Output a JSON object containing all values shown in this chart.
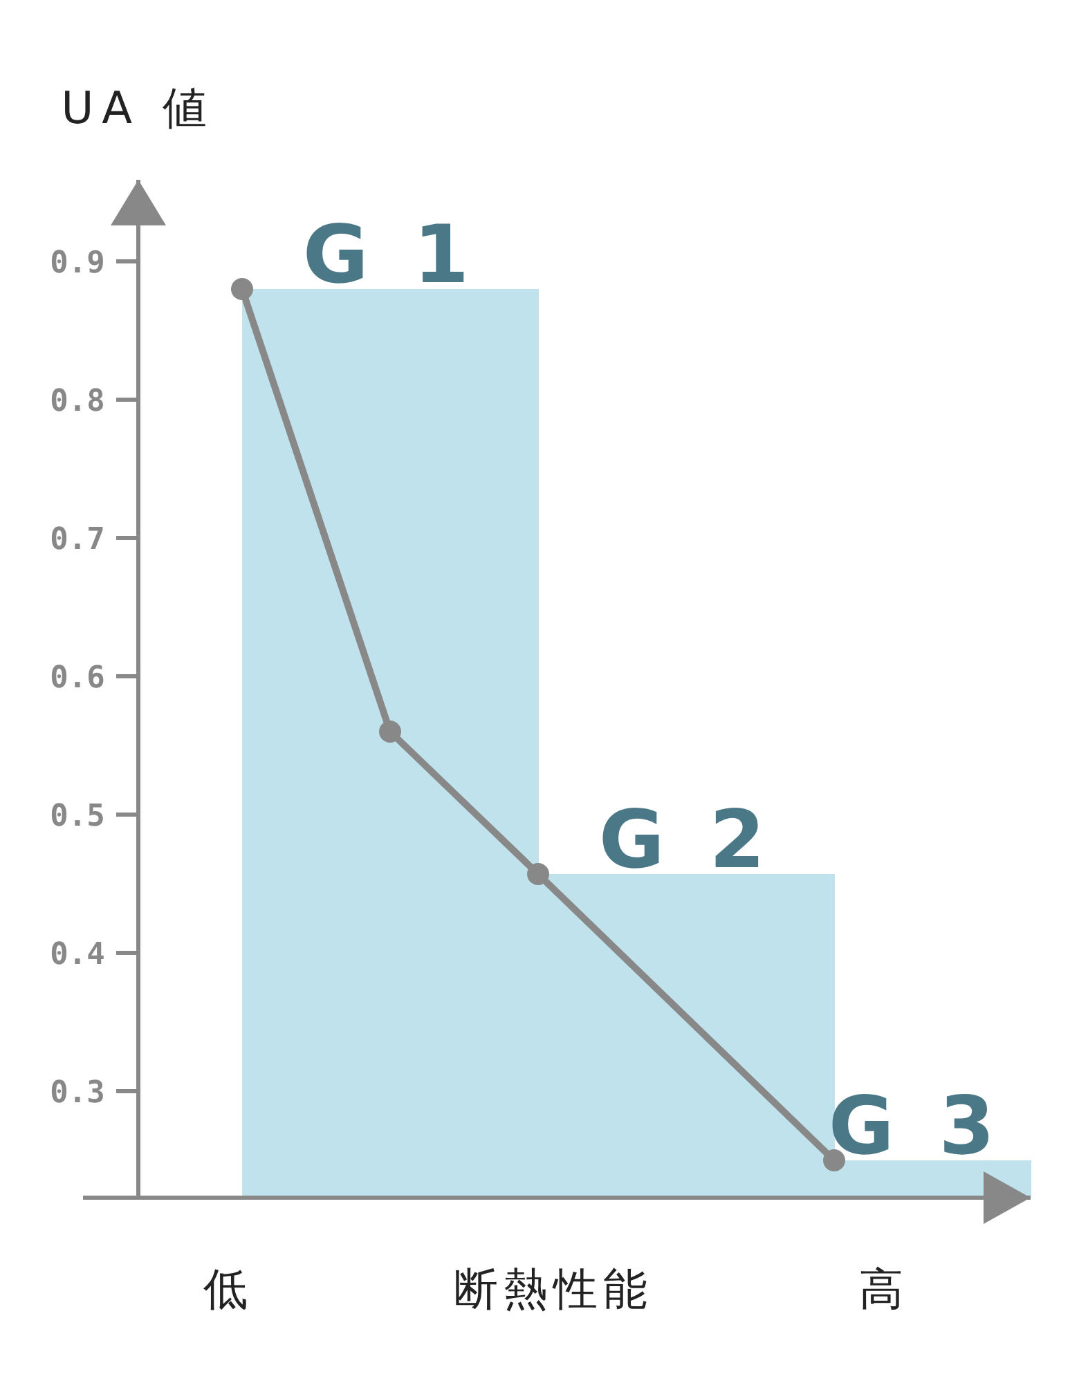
{
  "chart_data": {
    "type": "line",
    "ylabel": "UA 値",
    "xlabel": "断熱性能",
    "categories": [
      null,
      null,
      null,
      null,
      null,
      null
    ],
    "ylim": [
      0.223,
      0.959
    ],
    "yticks": [
      0.3,
      0.4,
      0.5,
      0.6,
      0.7,
      0.8,
      0.9
    ],
    "grid": false,
    "series": [
      {
        "type": "bar",
        "color": "#c0e2ed",
        "values": [
          0.88,
          0.88,
          0.457,
          0.457,
          0.25,
          0.25
        ]
      },
      {
        "color": "#888888",
        "marker": "circle",
        "values": [
          0.88,
          0.56,
          0.457,
          null,
          0.25,
          null
        ]
      }
    ],
    "annotations": [
      "G 1",
      "G 2",
      "G 3",
      "低",
      "高"
    ]
  }
}
